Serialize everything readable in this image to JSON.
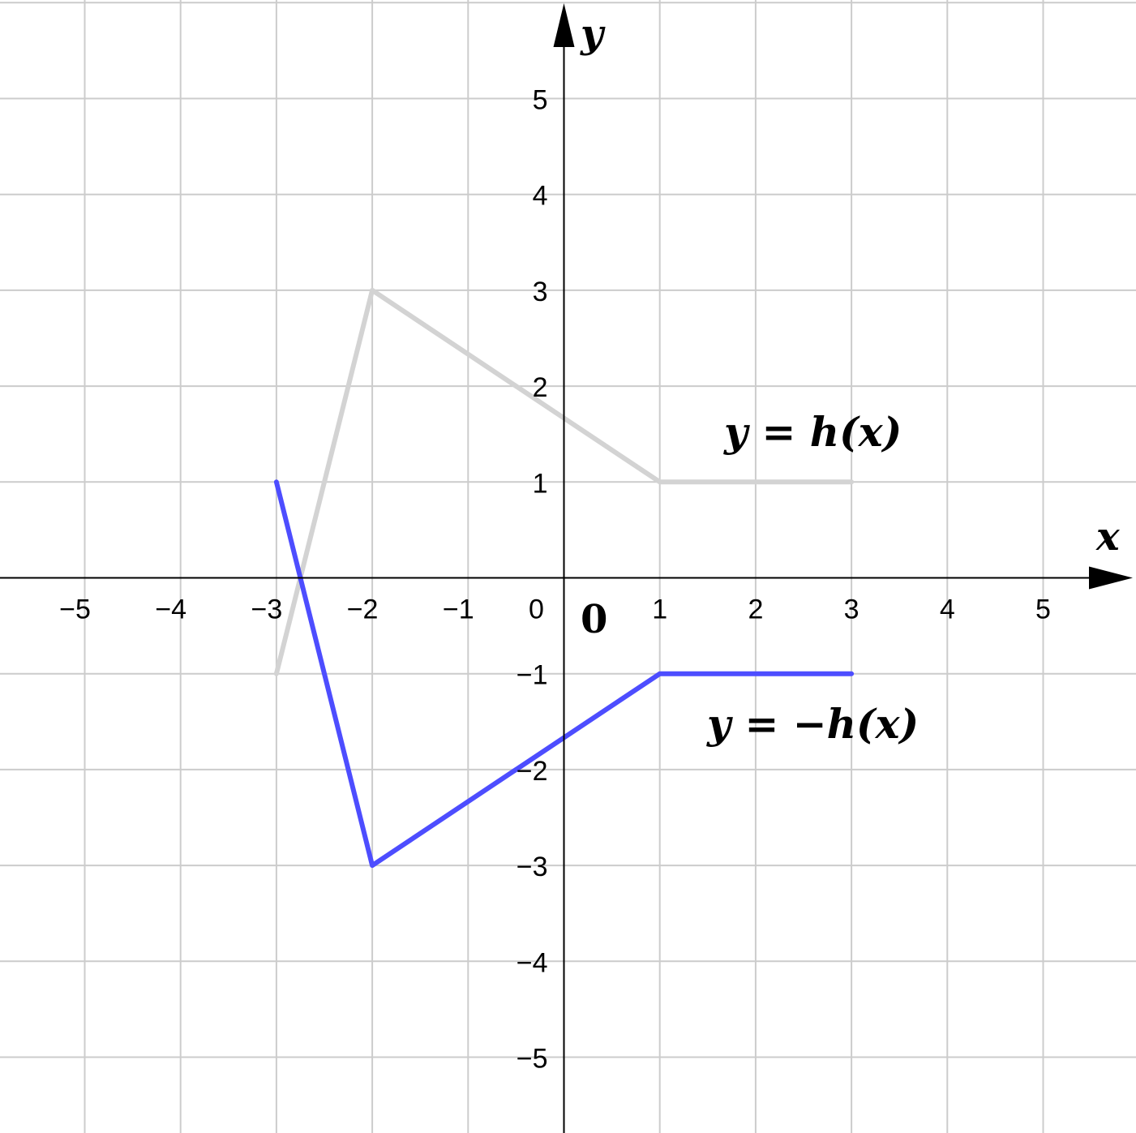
{
  "chart_data": {
    "type": "line",
    "xlabel": "x",
    "ylabel": "y",
    "origin_label": "0",
    "xlim": [
      -5.9,
      5.9
    ],
    "ylim": [
      -5.8,
      6.0
    ],
    "grid": true,
    "x_ticks": [
      {
        "value": -5,
        "label": "−5"
      },
      {
        "value": -4,
        "label": "−4"
      },
      {
        "value": -3,
        "label": "−3"
      },
      {
        "value": -2,
        "label": "−2"
      },
      {
        "value": -1,
        "label": "−1"
      },
      {
        "value": 0,
        "label": "0"
      },
      {
        "value": 1,
        "label": "1"
      },
      {
        "value": 2,
        "label": "2"
      },
      {
        "value": 3,
        "label": "3"
      },
      {
        "value": 4,
        "label": "4"
      },
      {
        "value": 5,
        "label": "5"
      }
    ],
    "y_ticks": [
      {
        "value": 5,
        "label": "5"
      },
      {
        "value": 4,
        "label": "4"
      },
      {
        "value": 3,
        "label": "3"
      },
      {
        "value": 2,
        "label": "2"
      },
      {
        "value": 1,
        "label": "1"
      },
      {
        "value": -1,
        "label": "−1"
      },
      {
        "value": -2,
        "label": "−2"
      },
      {
        "value": -3,
        "label": "−3"
      },
      {
        "value": -4,
        "label": "−4"
      },
      {
        "value": -5,
        "label": "−5"
      }
    ],
    "series": [
      {
        "name": "y = h(x)",
        "color": "#d3d3d3",
        "points": [
          [
            -3,
            -1
          ],
          [
            -2,
            3
          ],
          [
            1,
            1
          ],
          [
            3,
            1
          ]
        ]
      },
      {
        "name": "y = −h(x)",
        "color": "#4d4dff",
        "points": [
          [
            -3,
            1
          ],
          [
            -2,
            -3
          ],
          [
            1,
            -1
          ],
          [
            3,
            -1
          ]
        ]
      }
    ]
  }
}
